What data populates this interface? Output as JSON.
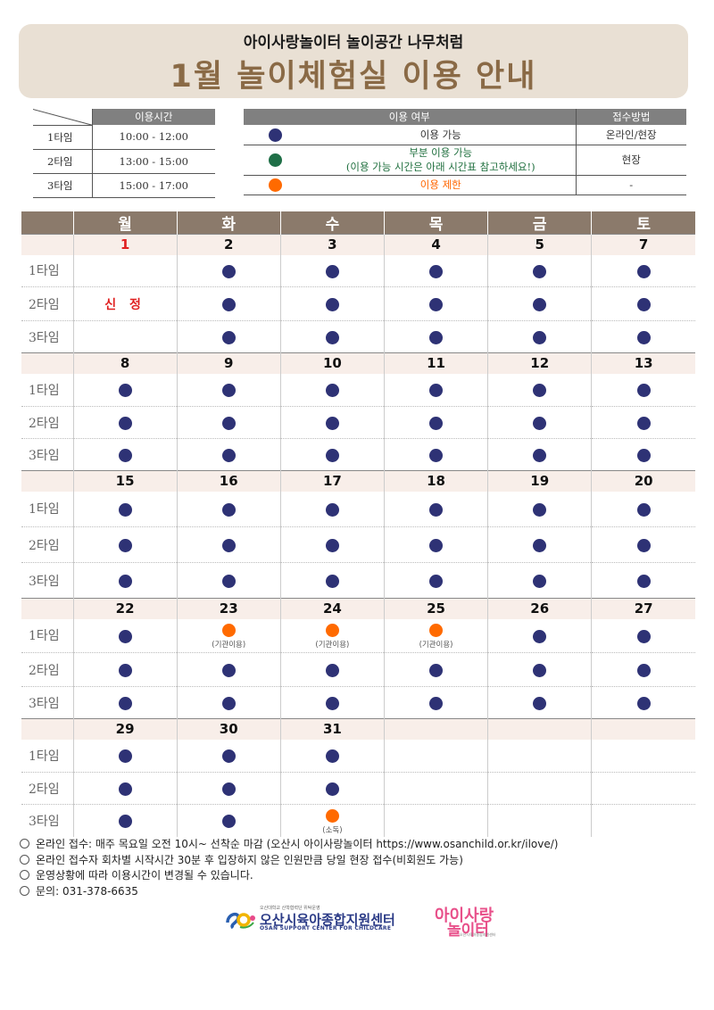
{
  "header": {
    "subtitle": "아이사랑놀이터 놀이공간 나무처럼",
    "title": "1월 놀이체험실 이용 안내"
  },
  "time_table": {
    "header": "이용시간",
    "rows": [
      {
        "name": "1타임",
        "time": "10:00 - 12:00"
      },
      {
        "name": "2타임",
        "time": "13:00 - 15:00"
      },
      {
        "name": "3타임",
        "time": "15:00 - 17:00"
      }
    ]
  },
  "status_table": {
    "header_status": "이용 여부",
    "header_method": "접수방법",
    "rows": [
      {
        "icon": "navy",
        "text": "이용 가능",
        "text2": "",
        "method": "온라인/현장"
      },
      {
        "icon": "green",
        "text": "부분 이용 가능",
        "text2": "(이용 가능 시간은 아래 시간표 참고하세요!)",
        "method": "현장"
      },
      {
        "icon": "orange",
        "text": "이용 제한",
        "text2": "",
        "method": "-"
      }
    ]
  },
  "calendar": {
    "days": [
      "월",
      "화",
      "수",
      "목",
      "금",
      "토"
    ],
    "slot_labels": [
      "1타임",
      "2타임",
      "3타임"
    ],
    "weeks": [
      {
        "dates": [
          "1",
          "2",
          "3",
          "4",
          "5",
          "7"
        ],
        "slots": [
          [
            "",
            "navy",
            "navy",
            "navy",
            "navy",
            "navy"
          ],
          [
            "신정",
            "navy",
            "navy",
            "navy",
            "navy",
            "navy"
          ],
          [
            "",
            "navy",
            "navy",
            "navy",
            "navy",
            "navy"
          ]
        ]
      },
      {
        "dates": [
          "8",
          "9",
          "10",
          "11",
          "12",
          "13"
        ],
        "slots": [
          [
            "navy",
            "navy",
            "navy",
            "navy",
            "navy",
            "navy"
          ],
          [
            "navy",
            "navy",
            "navy",
            "navy",
            "navy",
            "navy"
          ],
          [
            "navy",
            "navy",
            "navy",
            "navy",
            "navy",
            "navy"
          ]
        ]
      },
      {
        "dates": [
          "15",
          "16",
          "17",
          "18",
          "19",
          "20"
        ],
        "slots": [
          [
            "navy",
            "navy",
            "navy",
            "navy",
            "navy",
            "navy"
          ],
          [
            "navy",
            "navy",
            "navy",
            "navy",
            "navy",
            "navy"
          ],
          [
            "navy",
            "navy",
            "navy",
            "navy",
            "navy",
            "navy"
          ]
        ]
      },
      {
        "dates": [
          "22",
          "23",
          "24",
          "25",
          "26",
          "27"
        ],
        "slots": [
          [
            "navy",
            "orange:(기관이용)",
            "orange:(기관이용)",
            "orange:(기관이용)",
            "navy",
            "navy"
          ],
          [
            "navy",
            "navy",
            "navy",
            "navy",
            "navy",
            "navy"
          ],
          [
            "navy",
            "navy",
            "navy",
            "navy",
            "navy",
            "navy"
          ]
        ]
      },
      {
        "dates": [
          "29",
          "30",
          "31",
          "",
          "",
          ""
        ],
        "slots": [
          [
            "navy",
            "navy",
            "navy",
            "",
            "",
            ""
          ],
          [
            "navy",
            "navy",
            "navy",
            "",
            "",
            ""
          ],
          [
            "navy",
            "navy",
            "orange:(소독)",
            "",
            "",
            ""
          ]
        ]
      }
    ]
  },
  "notes": [
    "온라인 접수: 매주 목요일 오전 10시~ 선착순 마감 (오산시 아이사랑놀이터 https://www.osanchild.or.kr/ilove/)",
    "온라인 접수자 회차별 시작시간 30분 후 입장하지 않은 인원만큼 당일 현장 접수(비회원도 가능)",
    "운영상황에 따라 이용시간이 변경될 수 있습니다.",
    "문의: 031-378-6635"
  ],
  "footer": {
    "org_small": "오산대학교 산학협력단 위탁운영",
    "org_name": "오산시육아종합지원센터",
    "org_en": "OSAN SUPPORT CENTER FOR CHILDCARE",
    "play_logo_l1": "아이사랑",
    "play_logo_l2": "놀이터",
    "play_logo_l3": "오산시육아종합지원센터"
  },
  "colors": {
    "navy": "#2e3275",
    "green": "#1f6f47",
    "orange": "#ff6a00",
    "header_brown": "#8b7a6b",
    "banner_bg": "#e9e0d4",
    "title_brown": "#8a6a46"
  }
}
